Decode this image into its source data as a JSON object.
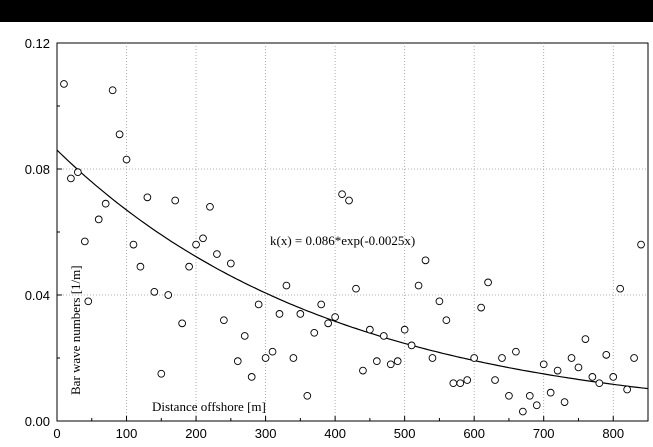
{
  "chart_data": {
    "type": "scatter",
    "title": "",
    "xlabel": "Distance offshore [m]",
    "ylabel": "Bar wave numbers [1/m]",
    "annotation": "k(x) = 0.086*exp(-0.0025x)",
    "xlim": [
      0,
      850
    ],
    "ylim": [
      0,
      0.12
    ],
    "xticks": [
      0,
      100,
      200,
      300,
      400,
      500,
      600,
      700,
      800
    ],
    "yticks": [
      0.0,
      0.04,
      0.08,
      0.12
    ],
    "ytick_labels": [
      "0.00",
      "0.04",
      "0.08",
      "0.12"
    ],
    "grid": true,
    "fit": {
      "a": 0.086,
      "b": -0.0025
    },
    "points": [
      [
        10,
        0.107
      ],
      [
        20,
        0.077
      ],
      [
        30,
        0.079
      ],
      [
        40,
        0.057
      ],
      [
        45,
        0.038
      ],
      [
        60,
        0.064
      ],
      [
        70,
        0.069
      ],
      [
        80,
        0.105
      ],
      [
        90,
        0.091
      ],
      [
        100,
        0.083
      ],
      [
        110,
        0.056
      ],
      [
        120,
        0.049
      ],
      [
        130,
        0.071
      ],
      [
        140,
        0.041
      ],
      [
        150,
        0.015
      ],
      [
        160,
        0.04
      ],
      [
        170,
        0.07
      ],
      [
        180,
        0.031
      ],
      [
        190,
        0.049
      ],
      [
        200,
        0.056
      ],
      [
        210,
        0.058
      ],
      [
        220,
        0.068
      ],
      [
        230,
        0.053
      ],
      [
        240,
        0.032
      ],
      [
        250,
        0.05
      ],
      [
        260,
        0.019
      ],
      [
        270,
        0.027
      ],
      [
        280,
        0.014
      ],
      [
        290,
        0.037
      ],
      [
        300,
        0.02
      ],
      [
        310,
        0.022
      ],
      [
        320,
        0.034
      ],
      [
        330,
        0.043
      ],
      [
        340,
        0.02
      ],
      [
        350,
        0.034
      ],
      [
        360,
        0.008
      ],
      [
        370,
        0.028
      ],
      [
        380,
        0.037
      ],
      [
        390,
        0.031
      ],
      [
        400,
        0.033
      ],
      [
        410,
        0.072
      ],
      [
        420,
        0.07
      ],
      [
        430,
        0.042
      ],
      [
        440,
        0.016
      ],
      [
        450,
        0.029
      ],
      [
        460,
        0.019
      ],
      [
        470,
        0.027
      ],
      [
        480,
        0.018
      ],
      [
        490,
        0.019
      ],
      [
        500,
        0.029
      ],
      [
        510,
        0.024
      ],
      [
        520,
        0.043
      ],
      [
        530,
        0.051
      ],
      [
        540,
        0.02
      ],
      [
        550,
        0.038
      ],
      [
        560,
        0.032
      ],
      [
        570,
        0.012
      ],
      [
        580,
        0.012
      ],
      [
        590,
        0.013
      ],
      [
        600,
        0.02
      ],
      [
        610,
        0.036
      ],
      [
        620,
        0.044
      ],
      [
        630,
        0.013
      ],
      [
        640,
        0.02
      ],
      [
        650,
        0.008
      ],
      [
        660,
        0.022
      ],
      [
        670,
        0.003
      ],
      [
        680,
        0.008
      ],
      [
        690,
        0.005
      ],
      [
        700,
        0.018
      ],
      [
        710,
        0.009
      ],
      [
        720,
        0.016
      ],
      [
        730,
        0.006
      ],
      [
        740,
        0.02
      ],
      [
        750,
        0.017
      ],
      [
        760,
        0.026
      ],
      [
        770,
        0.014
      ],
      [
        780,
        0.012
      ],
      [
        790,
        0.021
      ],
      [
        800,
        0.014
      ],
      [
        810,
        0.042
      ],
      [
        820,
        0.01
      ],
      [
        830,
        0.02
      ],
      [
        840,
        0.056
      ]
    ]
  }
}
